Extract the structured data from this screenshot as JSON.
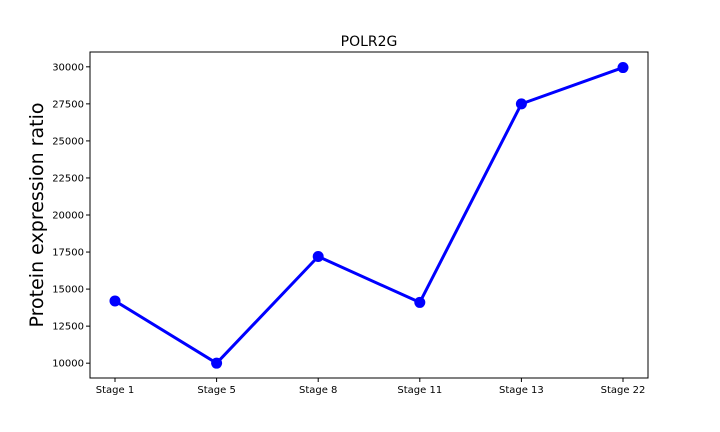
{
  "chart_data": {
    "type": "line",
    "title": "POLR2G",
    "xlabel": "",
    "ylabel": "Protein expression ratio",
    "categories": [
      "Stage 1",
      "Stage 5",
      "Stage 8",
      "Stage 11",
      "Stage 13",
      "Stage 22"
    ],
    "series": [
      {
        "values": [
          14200,
          10000,
          17200,
          14100,
          27500,
          29950
        ],
        "color": "#0000ff"
      }
    ],
    "yticks": [
      10000,
      12500,
      15000,
      17500,
      20000,
      22500,
      25000,
      27500,
      30000
    ],
    "ylim": [
      9000,
      31000
    ],
    "grid": false,
    "legend": "none"
  }
}
